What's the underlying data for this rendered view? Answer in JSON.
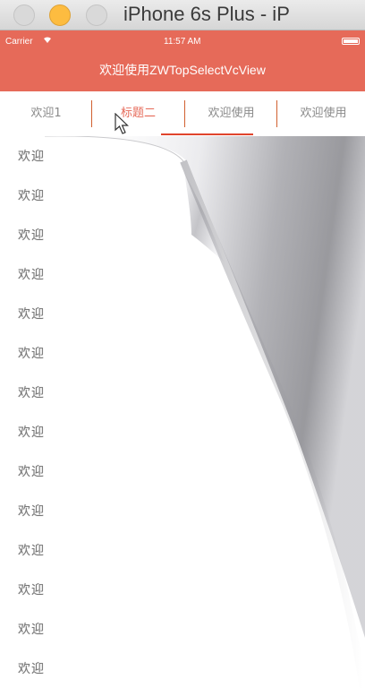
{
  "window": {
    "title": "iPhone 6s Plus - iP"
  },
  "status_bar": {
    "carrier": "Carrier",
    "wifi_icon": "wifi-icon",
    "time": "11:57 AM",
    "battery_icon": "battery-icon"
  },
  "nav": {
    "title": "欢迎使用ZWTopSelectVcView",
    "background": "#e66a59"
  },
  "tabs": [
    {
      "label": "欢迎1",
      "active": false
    },
    {
      "label": "标题二",
      "active": true
    },
    {
      "label": "欢迎使用",
      "active": false
    },
    {
      "label": "欢迎使用",
      "active": false
    }
  ],
  "accent_color": "#e0452d",
  "list": {
    "items": [
      "欢迎",
      "欢迎",
      "欢迎",
      "欢迎",
      "欢迎",
      "欢迎",
      "欢迎",
      "欢迎",
      "欢迎",
      "欢迎",
      "欢迎",
      "欢迎",
      "欢迎",
      "欢迎"
    ]
  }
}
